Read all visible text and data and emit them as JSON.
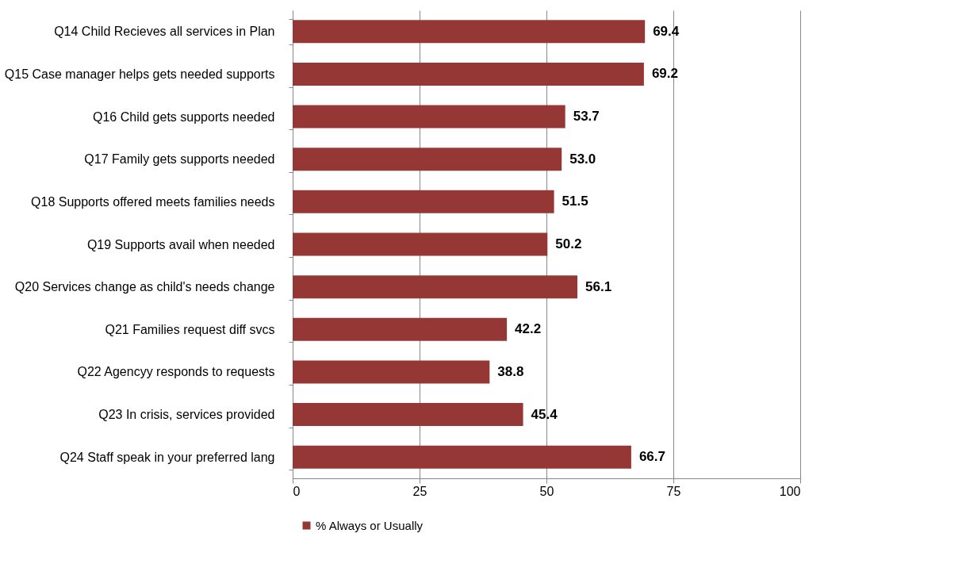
{
  "chart_data": {
    "type": "bar",
    "orientation": "horizontal",
    "categories": [
      "Q14 Child Recieves all services in Plan",
      "Q15 Case manager helps gets needed supports",
      "Q16 Child gets supports needed",
      "Q17 Family gets supports needed",
      "Q18 Supports offered  meets families needs",
      "Q19 Supports avail when needed",
      "Q20 Services change as child's needs change",
      "Q21 Families request diff svcs",
      "Q22 Agencyy responds to requests",
      "Q23 In crisis, services provided",
      "Q24 Staff speak in your preferred  lang"
    ],
    "series": [
      {
        "name": "% Always or Usually",
        "color": "#953735",
        "values": [
          69.4,
          69.2,
          53.7,
          53.0,
          51.5,
          50.2,
          56.1,
          42.2,
          38.8,
          45.4,
          66.7
        ],
        "value_labels": [
          "69.4",
          "69.2",
          "53.7",
          "53.0",
          "51.5",
          "50.2",
          "56.1",
          "42.2",
          "38.8",
          "45.4",
          "66.7"
        ]
      }
    ],
    "xlim": [
      0,
      100
    ],
    "xticks": [
      0,
      25,
      50,
      75,
      100
    ],
    "grid": "x",
    "legend": "bottom"
  }
}
